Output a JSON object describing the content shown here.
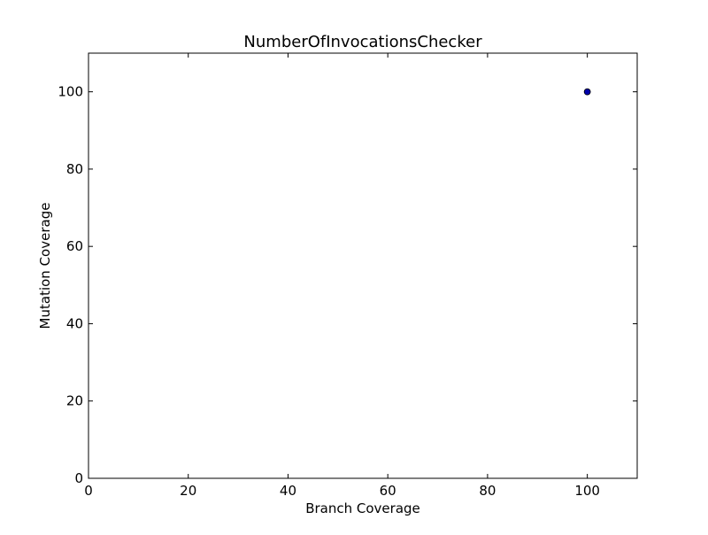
{
  "chart_data": {
    "type": "scatter",
    "title": "NumberOfInvocationsChecker",
    "xlabel": "Branch Coverage",
    "ylabel": "Mutation Coverage",
    "xlim": [
      0,
      110
    ],
    "ylim": [
      0,
      110
    ],
    "xticks": [
      0,
      20,
      40,
      60,
      80,
      100
    ],
    "yticks": [
      0,
      20,
      40,
      60,
      80,
      100
    ],
    "grid": false,
    "series": [
      {
        "points": [
          {
            "x": 100,
            "y": 100
          }
        ],
        "color": "#0000aa"
      }
    ]
  }
}
